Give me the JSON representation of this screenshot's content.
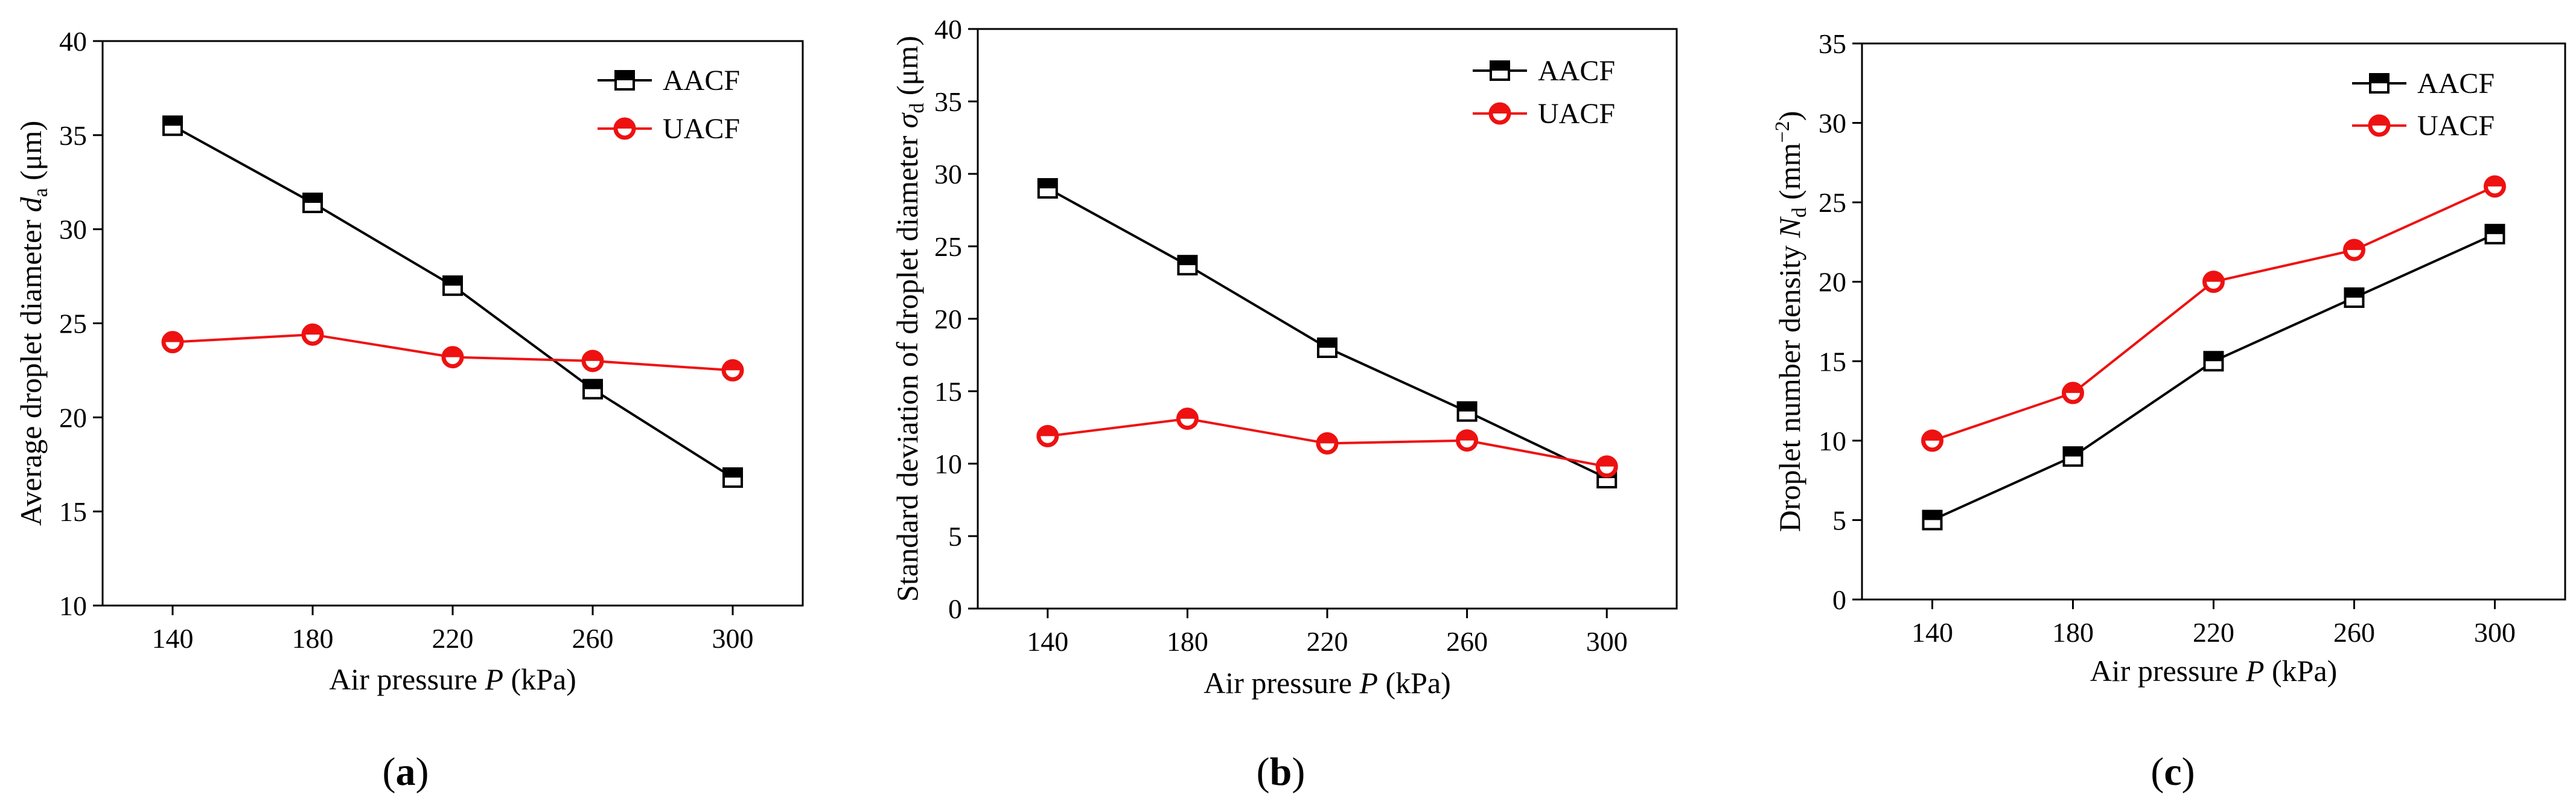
{
  "chart_data": [
    {
      "type": "line",
      "panel_label": "a",
      "x": [
        140,
        180,
        220,
        260,
        300
      ],
      "xticks": [
        "140",
        "180",
        "220",
        "260",
        "300"
      ],
      "xlim": [
        120,
        320
      ],
      "ylim": [
        10,
        40
      ],
      "yticks": [
        "10",
        "15",
        "20",
        "25",
        "30",
        "35",
        "40"
      ],
      "xlabel": {
        "pre": "Air pressure ",
        "var": "P",
        "post": " (kPa)"
      },
      "ylabel": {
        "pre": "Average droplet diameter ",
        "var": "d",
        "sub": "a",
        "post": " (μm)"
      },
      "legend_position": "top-right",
      "series": [
        {
          "name": "AACF",
          "color": "#000000",
          "marker": "half-filled-square",
          "values": [
            35.5,
            31.4,
            27.0,
            21.5,
            16.8
          ]
        },
        {
          "name": "UACF",
          "color": "#ee1111",
          "marker": "half-filled-circle",
          "values": [
            24.0,
            24.4,
            23.2,
            23.0,
            22.5
          ]
        }
      ]
    },
    {
      "type": "line",
      "panel_label": "b",
      "x": [
        140,
        180,
        220,
        260,
        300
      ],
      "xticks": [
        "140",
        "180",
        "220",
        "260",
        "300"
      ],
      "xlim": [
        120,
        320
      ],
      "ylim": [
        0,
        40
      ],
      "yticks": [
        "0",
        "5",
        "10",
        "15",
        "20",
        "25",
        "30",
        "35",
        "40"
      ],
      "xlabel": {
        "pre": "Air pressure ",
        "var": "P",
        "post": " (kPa)"
      },
      "ylabel": {
        "pre": "Standard deviation of droplet diameter ",
        "var": "σ",
        "sub": "d",
        "post": " (μm)"
      },
      "legend_position": "top-right",
      "series": [
        {
          "name": "AACF",
          "color": "#000000",
          "marker": "half-filled-square",
          "values": [
            29.0,
            23.7,
            18.0,
            13.6,
            9.0
          ]
        },
        {
          "name": "UACF",
          "color": "#ee1111",
          "marker": "half-filled-circle",
          "values": [
            11.9,
            13.1,
            11.4,
            11.6,
            9.8
          ]
        }
      ]
    },
    {
      "type": "line",
      "panel_label": "c",
      "x": [
        140,
        180,
        220,
        260,
        300
      ],
      "xticks": [
        "140",
        "180",
        "220",
        "260",
        "300"
      ],
      "xlim": [
        120,
        320
      ],
      "ylim": [
        0,
        35
      ],
      "yticks": [
        "0",
        "5",
        "10",
        "15",
        "20",
        "25",
        "30",
        "35"
      ],
      "xlabel": {
        "pre": "Air pressure ",
        "var": "P",
        "post": " (kPa)"
      },
      "ylabel": {
        "pre": "Droplet number density ",
        "var": "N",
        "sub": "d",
        "post": " (mm",
        "sup": "−2",
        "post2": ")"
      },
      "legend_position": "top-left",
      "series": [
        {
          "name": "AACF",
          "color": "#000000",
          "marker": "half-filled-square",
          "values": [
            5.0,
            9.0,
            15.0,
            19.0,
            23.0
          ]
        },
        {
          "name": "UACF",
          "color": "#ee1111",
          "marker": "half-filled-circle",
          "values": [
            10.0,
            13.0,
            20.0,
            22.0,
            26.0
          ]
        }
      ]
    }
  ]
}
